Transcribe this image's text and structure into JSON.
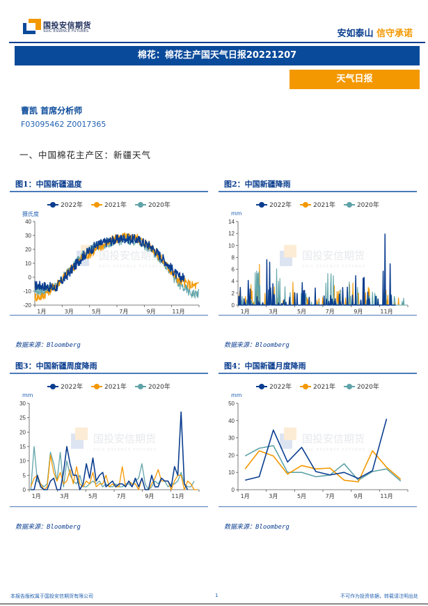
{
  "header": {
    "logo_cn": "国投安信期货",
    "logo_en": "SDIC ESSENCE FUTURES",
    "tagline_a": "安如泰山",
    "tagline_b": "信守承诺",
    "colors": {
      "brand_blue": "#0a4a9a",
      "brand_orange": "#f39800"
    }
  },
  "title_bar": "棉花：棉花主产国天气日报20221207",
  "tag_bar": "天气日报",
  "analyst": {
    "name": "曹凯 首席分析师",
    "ids": "F03095462 Z0017365"
  },
  "section_title": "一、中国棉花主产区：新疆天气",
  "legend": [
    {
      "label": "2022年",
      "color": "#0a3d8f"
    },
    {
      "label": "2021年",
      "color": "#f39800"
    },
    {
      "label": "2020年",
      "color": "#5fa3a8"
    }
  ],
  "source_label": "数据来源：Bloomberg",
  "footer": {
    "left": "本报告版权属于国投安信期货有限公司",
    "page": "1",
    "right": "不可作为投资依据，转载请注明出处"
  },
  "watermark": {
    "cn": "国投安信期货",
    "en": "SDIC ESSENCE FUTURES"
  },
  "figures": {
    "fig1": {
      "title": "图1：中国新疆温度",
      "unit": "摄氏度"
    },
    "fig2": {
      "title": "图2：中国新疆降雨",
      "unit": "mm"
    },
    "fig3": {
      "title": "图3：中国新疆周度降雨",
      "unit": "mm"
    },
    "fig4": {
      "title": "图4：中国新疆月度降雨",
      "unit": "mm"
    }
  },
  "chart_data": [
    {
      "type": "line",
      "title": "图1：中国新疆温度",
      "ylabel": "摄氏度",
      "ylim": [
        -20,
        40
      ],
      "yticks": [
        -20,
        -10,
        0,
        10,
        20,
        30,
        40
      ],
      "xticks": [
        "1月",
        "3月",
        "5月",
        "7月",
        "9月",
        "11月"
      ],
      "x": [
        "1月",
        "2月",
        "3月",
        "4月",
        "5月",
        "6月",
        "7月",
        "8月",
        "9月",
        "10月",
        "11月",
        "12月"
      ],
      "series": [
        {
          "name": "2022年",
          "values": [
            -6,
            -8,
            3,
            15,
            23,
            26,
            28,
            27,
            22,
            12,
            0,
            null
          ]
        },
        {
          "name": "2021年",
          "values": [
            -14,
            -6,
            4,
            14,
            20,
            26,
            29,
            28,
            22,
            10,
            -2,
            -6
          ]
        },
        {
          "name": "2020年",
          "values": [
            -10,
            -7,
            5,
            16,
            22,
            25,
            27,
            26,
            20,
            10,
            -5,
            -12
          ]
        }
      ]
    },
    {
      "type": "line",
      "title": "图2：中国新疆降雨",
      "ylabel": "mm",
      "ylim": [
        0,
        14
      ],
      "yticks": [
        0,
        2,
        4,
        6,
        8,
        10,
        12,
        14
      ],
      "xticks": [
        "1月",
        "3月",
        "5月",
        "7月",
        "9月",
        "11月"
      ],
      "notes": "Daily precipitation; spikes peak ~12.2mm (2022, mid-Nov), ~8.2mm (2022, early Mar), ~6.9mm (2021, Feb)",
      "series": [
        {
          "name": "2022年",
          "peaks": [
            4.6,
            2.4,
            8.2,
            4.0,
            3.8,
            4.8,
            1.8,
            3.2,
            5.2,
            4.8,
            12.2,
            3.2
          ]
        },
        {
          "name": "2021年",
          "peaks": [
            4.0,
            6.9,
            4.8,
            4.2,
            2.8,
            2.3,
            5.5,
            3.8,
            4.1,
            3.1,
            3.6,
            2.3
          ]
        },
        {
          "name": "2020年",
          "peaks": [
            4.9,
            6.1,
            6.6,
            3.2,
            2.8,
            1.0,
            5.4,
            6.6,
            3.0,
            3.3,
            3.5,
            2.8
          ]
        }
      ]
    },
    {
      "type": "line",
      "title": "图3：中国新疆周度降雨",
      "ylabel": "mm",
      "ylim": [
        0,
        30
      ],
      "yticks": [
        0,
        5,
        10,
        15,
        20,
        25,
        30
      ],
      "xticks": [
        "1月",
        "3月",
        "5月",
        "7月",
        "9月",
        "11月"
      ],
      "series": [
        {
          "name": "2022年",
          "values": [
            0,
            0,
            5,
            1,
            0,
            0,
            3,
            4,
            0,
            0,
            6,
            15,
            9,
            5,
            5,
            0,
            2,
            9,
            4,
            11,
            3,
            5,
            6,
            1,
            2,
            3,
            1,
            2,
            2,
            1,
            3,
            1,
            4,
            1,
            4,
            0,
            0,
            5,
            1,
            1,
            4,
            3,
            3,
            1,
            8,
            5,
            27,
            2,
            0,
            null,
            null,
            null
          ]
        },
        {
          "name": "2021年",
          "values": [
            1,
            4,
            5,
            2,
            0,
            1,
            12,
            6,
            3,
            6,
            2,
            3,
            7,
            2,
            8,
            2,
            1,
            3,
            2,
            6,
            1,
            2,
            2,
            5,
            1,
            2,
            1,
            1,
            8,
            1,
            3,
            2,
            2,
            0,
            4,
            0,
            0,
            2,
            4,
            7,
            3,
            3,
            3,
            0,
            3,
            5,
            5,
            0,
            3,
            2,
            0,
            0
          ]
        },
        {
          "name": "2020年",
          "values": [
            0,
            15,
            3,
            2,
            1,
            2,
            13,
            9,
            3,
            13,
            1,
            10,
            5,
            3,
            2,
            5,
            1,
            1,
            2,
            3,
            2,
            3,
            1,
            2,
            1,
            1,
            2,
            1,
            1,
            2,
            2,
            1,
            3,
            4,
            9,
            2,
            0,
            1,
            3,
            2,
            4,
            3,
            1,
            2,
            2,
            3,
            6,
            2,
            1,
            1,
            3,
            null
          ]
        }
      ]
    },
    {
      "type": "line",
      "title": "图4：中国新疆月度降雨",
      "ylabel": "mm",
      "ylim": [
        0,
        50
      ],
      "yticks": [
        0,
        10,
        20,
        30,
        40,
        50
      ],
      "xticks": [
        "1月",
        "3月",
        "5月",
        "7月",
        "9月",
        "11月"
      ],
      "x": [
        "1月",
        "2月",
        "3月",
        "4月",
        "5月",
        "6月",
        "7月",
        "8月",
        "9月",
        "10月",
        "11月",
        "12月"
      ],
      "series": [
        {
          "name": "2022年",
          "values": [
            5.5,
            7.5,
            34.5,
            16,
            24.5,
            10.5,
            8.5,
            10,
            6.5,
            11,
            41,
            null
          ]
        },
        {
          "name": "2021年",
          "values": [
            12,
            22.5,
            19.5,
            9,
            14,
            12,
            12.5,
            5.5,
            4.5,
            22.5,
            13,
            6
          ]
        },
        {
          "name": "2020年",
          "values": [
            19.5,
            24,
            25.5,
            10,
            10,
            7.5,
            8.5,
            15,
            5.5,
            10.5,
            12,
            5
          ]
        }
      ]
    }
  ]
}
